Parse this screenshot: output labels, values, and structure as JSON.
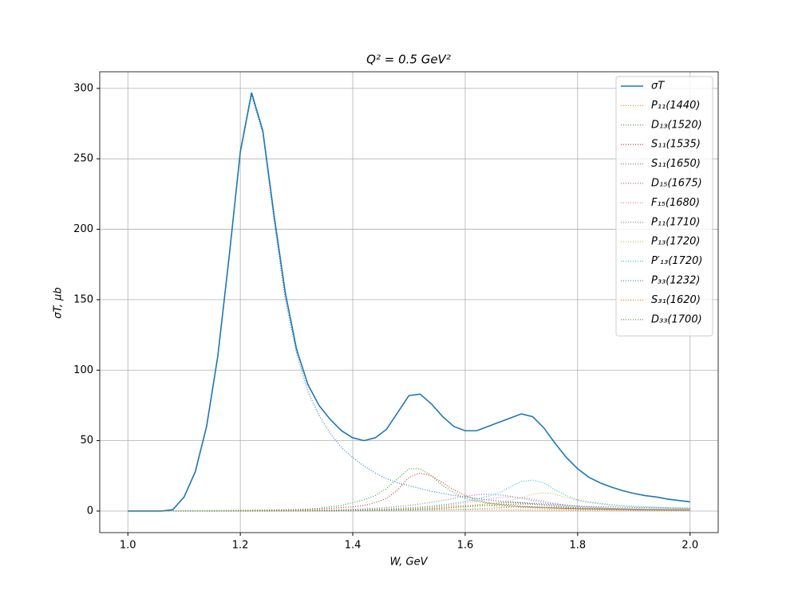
{
  "chart_data": {
    "type": "line",
    "title": "Q² = 0.5 GeV²",
    "x_label": "W, GeV",
    "y_label": "σT, μb",
    "xlim": [
      0.95,
      2.05
    ],
    "ylim": [
      -15.3,
      311.8
    ],
    "xticks": [
      {
        "value": 1,
        "label": "1.0"
      },
      1.2,
      1.4,
      1.6,
      1.8,
      {
        "value": 2,
        "label": "2.0"
      }
    ],
    "yticks": [
      0,
      50,
      100,
      150,
      200,
      250,
      300
    ],
    "grid": true,
    "legend": "upper right",
    "x": [
      1.0,
      1.02,
      1.04,
      1.06,
      1.08,
      1.1,
      1.12,
      1.14,
      1.16,
      1.18,
      1.2,
      1.22,
      1.24,
      1.26,
      1.28,
      1.3,
      1.32,
      1.34,
      1.36,
      1.38,
      1.4,
      1.42,
      1.44,
      1.46,
      1.48,
      1.5,
      1.52,
      1.54,
      1.56,
      1.58,
      1.6,
      1.62,
      1.64,
      1.66,
      1.68,
      1.7,
      1.72,
      1.74,
      1.76,
      1.78,
      1.8,
      1.82,
      1.84,
      1.86,
      1.88,
      1.9,
      1.92,
      1.94,
      1.96,
      1.98,
      2.0
    ],
    "series": [
      {
        "name": "σT",
        "color": "#1f77b4",
        "linestyle": "solid",
        "values": [
          0,
          0,
          0,
          0,
          1,
          10,
          28,
          60,
          110,
          180,
          255,
          297,
          270,
          210,
          155,
          115,
          90,
          75,
          65,
          57,
          52,
          50,
          52,
          58,
          70,
          82,
          83,
          76,
          67,
          60,
          57,
          57,
          60,
          63,
          66,
          69,
          67,
          59,
          48,
          38,
          30,
          24,
          20,
          17,
          14.5,
          12.5,
          11,
          10,
          8.5,
          7.5,
          6.5
        ]
      },
      {
        "name": "P₁₁(1440)",
        "color": "#ff7f0e",
        "linestyle": "dotted",
        "values": [
          0,
          0,
          0,
          0,
          0,
          0,
          0,
          0.1,
          0.1,
          0.2,
          0.2,
          0.3,
          0.3,
          0.4,
          0.5,
          0.6,
          0.7,
          0.8,
          0.9,
          1,
          1.1,
          1.2,
          1.3,
          1.3,
          1.3,
          1.3,
          1.3,
          1.2,
          1.2,
          1.1,
          1,
          1,
          0.9,
          0.9,
          0.8,
          0.8,
          0.7,
          0.7,
          0.6,
          0.6,
          0.5,
          0.5,
          0.5,
          0.4,
          0.4,
          0.4,
          0.4,
          0.3,
          0.3,
          0.3,
          0.3
        ]
      },
      {
        "name": "D₁₃(1520)",
        "color": "#2ca02c",
        "linestyle": "dotted",
        "values": [
          0,
          0,
          0,
          0,
          0,
          0,
          0,
          0.2,
          0.3,
          0.4,
          0.5,
          0.6,
          0.7,
          0.8,
          0.9,
          1,
          1.5,
          2,
          3,
          4,
          6,
          8,
          11,
          16,
          23,
          30,
          30,
          25,
          18,
          13,
          9,
          7,
          5.5,
          4.5,
          3.5,
          3,
          2.6,
          2.3,
          2,
          1.8,
          1.6,
          1.5,
          1.4,
          1.3,
          1.2,
          1.1,
          1.1,
          1,
          1,
          0.9,
          0.9
        ]
      },
      {
        "name": "S₁₁(1535)",
        "color": "#d62728",
        "linestyle": "dotted",
        "values": [
          0,
          0,
          0,
          0,
          0,
          0,
          0,
          0.1,
          0.2,
          0.3,
          0.4,
          0.5,
          0.6,
          0.7,
          0.8,
          1,
          1.2,
          1.5,
          2,
          2.5,
          3,
          4,
          6,
          9,
          15,
          24,
          27,
          25,
          20,
          15,
          11,
          8,
          6,
          5,
          4,
          3.4,
          3,
          2.6,
          2.3,
          2,
          1.8,
          1.6,
          1.5,
          1.4,
          1.3,
          1.2,
          1.1,
          1,
          1,
          0.9,
          0.9
        ]
      },
      {
        "name": "S₁₁(1650)",
        "color": "#9467bd",
        "linestyle": "dotted",
        "values": [
          0,
          0,
          0,
          0,
          0,
          0,
          0,
          0,
          0,
          0,
          0,
          0,
          0.1,
          0.2,
          0.3,
          0.4,
          0.5,
          0.6,
          0.8,
          1,
          1.3,
          1.6,
          2,
          2.5,
          3.2,
          4,
          5,
          6.2,
          7.5,
          9,
          10.5,
          11.5,
          12,
          11.5,
          10.5,
          9,
          7.5,
          6,
          5,
          4,
          3.3,
          2.8,
          2.4,
          2,
          1.8,
          1.6,
          1.4,
          1.3,
          1.2,
          1.1,
          1
        ]
      },
      {
        "name": "D₁₅(1675)",
        "color": "#8c564b",
        "linestyle": "dotted",
        "values": [
          0,
          0,
          0,
          0,
          0,
          0,
          0,
          0,
          0,
          0,
          0,
          0,
          0,
          0,
          0,
          0.1,
          0.1,
          0.2,
          0.2,
          0.3,
          0.4,
          0.5,
          0.6,
          0.7,
          0.9,
          1.1,
          1.4,
          1.8,
          2.3,
          2.9,
          3.6,
          4.4,
          5.1,
          5.7,
          6,
          5.7,
          5.1,
          4.2,
          3.3,
          2.6,
          2,
          1.7,
          1.4,
          1.1,
          1,
          0.8,
          0.7,
          0.7,
          0.6,
          0.5,
          0.5
        ]
      },
      {
        "name": "F₁₅(1680)",
        "color": "#e377c2",
        "linestyle": "dotted",
        "values": [
          0,
          0,
          0,
          0,
          0,
          0,
          0,
          0,
          0,
          0,
          0,
          0,
          0,
          0,
          0,
          0.1,
          0.2,
          0.3,
          0.4,
          0.5,
          0.6,
          0.7,
          0.9,
          1.1,
          1.4,
          1.8,
          2.3,
          3,
          3.8,
          4.8,
          6,
          7.3,
          8.5,
          9.5,
          10,
          9.5,
          8.5,
          7,
          5.5,
          4.3,
          3.4,
          2.8,
          2.3,
          1.9,
          1.6,
          1.4,
          1.2,
          1.1,
          1,
          0.9,
          0.8
        ]
      },
      {
        "name": "P₁₁(1710)",
        "color": "#7f7f7f",
        "linestyle": "dotted",
        "values": [
          0,
          0,
          0,
          0,
          0,
          0,
          0,
          0,
          0,
          0,
          0,
          0,
          0,
          0,
          0,
          0,
          0,
          0.1,
          0.1,
          0.1,
          0.2,
          0.2,
          0.3,
          0.3,
          0.4,
          0.5,
          0.6,
          0.7,
          0.9,
          1.1,
          1.3,
          1.6,
          1.9,
          2.3,
          2.7,
          3,
          3,
          2.8,
          2.4,
          2,
          1.7,
          1.4,
          1.2,
          1,
          0.9,
          0.8,
          0.7,
          0.6,
          0.5,
          0.5,
          0.4
        ]
      },
      {
        "name": "P₁₃(1720)",
        "color": "#bcbd22",
        "linestyle": "dotted",
        "values": [
          0,
          0,
          0,
          0,
          0,
          0,
          0,
          0,
          0,
          0,
          0,
          0,
          0,
          0,
          0,
          0.1,
          0.2,
          0.2,
          0.3,
          0.4,
          0.5,
          0.6,
          0.7,
          0.9,
          1.1,
          1.3,
          1.6,
          2,
          2.4,
          2.9,
          3.5,
          4.2,
          5,
          6,
          7.5,
          9.5,
          12,
          13,
          12,
          9.5,
          7.5,
          6,
          5,
          4,
          3.5,
          3,
          2.6,
          2.3,
          2,
          1.8,
          1.6
        ]
      },
      {
        "name": "P′₁₃(1720)",
        "color": "#17becf",
        "linestyle": "dotted",
        "values": [
          0,
          0,
          0,
          0,
          0,
          0,
          0,
          0,
          0,
          0,
          0,
          0,
          0,
          0,
          0,
          0.2,
          0.3,
          0.4,
          0.5,
          0.7,
          0.9,
          1.1,
          1.3,
          1.6,
          2,
          2.5,
          3,
          3.5,
          4.5,
          5.5,
          7,
          8.5,
          10.5,
          13,
          17,
          21,
          22,
          20,
          15,
          11,
          8,
          6.5,
          5.5,
          4.5,
          4,
          3.5,
          3,
          2.8,
          2.5,
          2.2,
          2
        ]
      },
      {
        "name": "P₃₃(1232)",
        "color": "#1f77b4",
        "linestyle": "dotted",
        "values": [
          0,
          0,
          0,
          0,
          1,
          10,
          28,
          60,
          110,
          180,
          254,
          295,
          268,
          206,
          150,
          112,
          85,
          68,
          55,
          45,
          38,
          32,
          27,
          23,
          20,
          18,
          16,
          14,
          12.5,
          11,
          10,
          9,
          8,
          7,
          6.5,
          6,
          5.5,
          5,
          4.5,
          4,
          3.5,
          3.3,
          3.1,
          2.9,
          2.7,
          2.5,
          2.4,
          2.3,
          2.2,
          2.1,
          2
        ]
      },
      {
        "name": "S₃₁(1620)",
        "color": "#ff7f0e",
        "linestyle": "dotted",
        "values": [
          0,
          0,
          0,
          0,
          0,
          0,
          0,
          0,
          0,
          0,
          0,
          0,
          0,
          0,
          0,
          0.1,
          0.1,
          0.2,
          0.3,
          0.4,
          0.5,
          0.7,
          0.9,
          1.1,
          1.4,
          1.8,
          2.3,
          2.8,
          3.3,
          3.7,
          4,
          4,
          3.8,
          3.4,
          3,
          2.6,
          2.2,
          1.9,
          1.6,
          1.4,
          1.2,
          1.1,
          1,
          0.9,
          0.8,
          0.7,
          0.7,
          0.6,
          0.6,
          0.5,
          0.5
        ]
      },
      {
        "name": "D₃₃(1700)",
        "color": "#2ca02c",
        "linestyle": "dotted",
        "values": [
          0,
          0,
          0,
          0,
          0,
          0,
          0,
          0,
          0,
          0,
          0,
          0,
          0,
          0,
          0,
          0.1,
          0.1,
          0.2,
          0.2,
          0.3,
          0.4,
          0.5,
          0.6,
          0.7,
          0.9,
          1.1,
          1.4,
          1.7,
          2.1,
          2.5,
          3,
          3.5,
          4,
          4.5,
          4.8,
          5,
          4.8,
          4.3,
          3.6,
          3,
          2.5,
          2.1,
          1.8,
          1.5,
          1.3,
          1.1,
          1,
          0.9,
          0.8,
          0.7,
          0.6
        ]
      }
    ]
  }
}
